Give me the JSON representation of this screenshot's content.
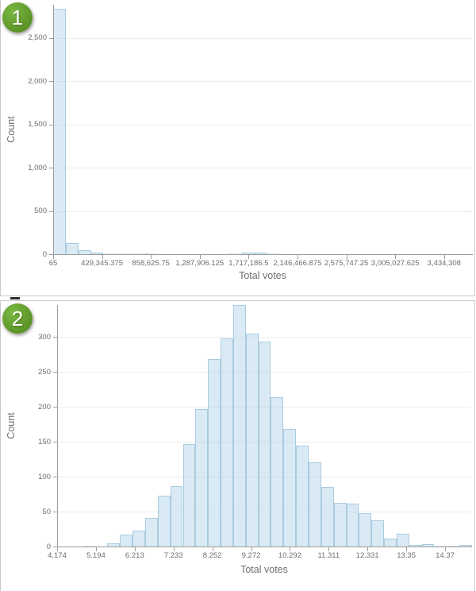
{
  "page": {
    "background": "#ffffff"
  },
  "badges": [
    {
      "label": "1"
    },
    {
      "label": "2"
    }
  ],
  "colors": {
    "badge_green": "#5f9e2c",
    "bar_fill": "#d9e8f2",
    "bar_border": "#bad3e4",
    "gridline": "#ededed",
    "axis": "#9d9d9d",
    "label_text": "#6e6e6e",
    "panel_border": "#c9c9c9"
  },
  "chart_data": [
    {
      "type": "bar",
      "variant": "histogram",
      "title": "",
      "xlabel": "Total votes",
      "ylabel": "Count",
      "legend": "none",
      "grid": "horizontal",
      "ylim": [
        0,
        2870
      ],
      "xlim": [
        65,
        3680000
      ],
      "y_tick_values": [
        0,
        500,
        1000,
        1500,
        2000,
        2500
      ],
      "y_tick_labels": [
        "0",
        "500",
        "1,000",
        "1,500",
        "2,000",
        "2,500"
      ],
      "x_tick_labels": [
        "65",
        "429,345.375",
        "858,625.75",
        "1,287,906.125",
        "1,717,186.5",
        "2,146,466.875",
        "2,575,747.25",
        "3,005,027.625",
        "3,434,308"
      ],
      "values": [
        2834,
        130,
        47,
        22,
        9,
        6,
        7,
        5,
        2,
        1,
        1,
        1,
        2,
        2,
        3,
        16,
        16,
        3,
        1,
        1,
        1,
        1,
        0,
        1,
        1,
        0,
        0,
        1,
        0,
        0,
        1,
        0,
        1
      ]
    },
    {
      "type": "bar",
      "variant": "histogram",
      "title": "",
      "xlabel": "Total votes",
      "ylabel": "Count",
      "legend": "none",
      "grid": "horizontal",
      "ylim": [
        0,
        350
      ],
      "xlim": [
        4.174,
        15.08
      ],
      "y_tick_values": [
        0,
        50,
        100,
        150,
        200,
        250,
        300
      ],
      "y_tick_labels": [
        "0",
        "50",
        "100",
        "150",
        "200",
        "250",
        "300"
      ],
      "x_tick_labels": [
        "4.174",
        "5.194",
        "6.213",
        "7.233",
        "8.252",
        "9.272",
        "10.292",
        "11.311",
        "12.331",
        "13.35",
        "14.37"
      ],
      "values": [
        0,
        0,
        1,
        0,
        4,
        17,
        23,
        41,
        73,
        86,
        147,
        197,
        268,
        298,
        345,
        305,
        293,
        214,
        168,
        144,
        120,
        85,
        63,
        61,
        48,
        37,
        11,
        18,
        2,
        3,
        1,
        1,
        2
      ]
    }
  ]
}
